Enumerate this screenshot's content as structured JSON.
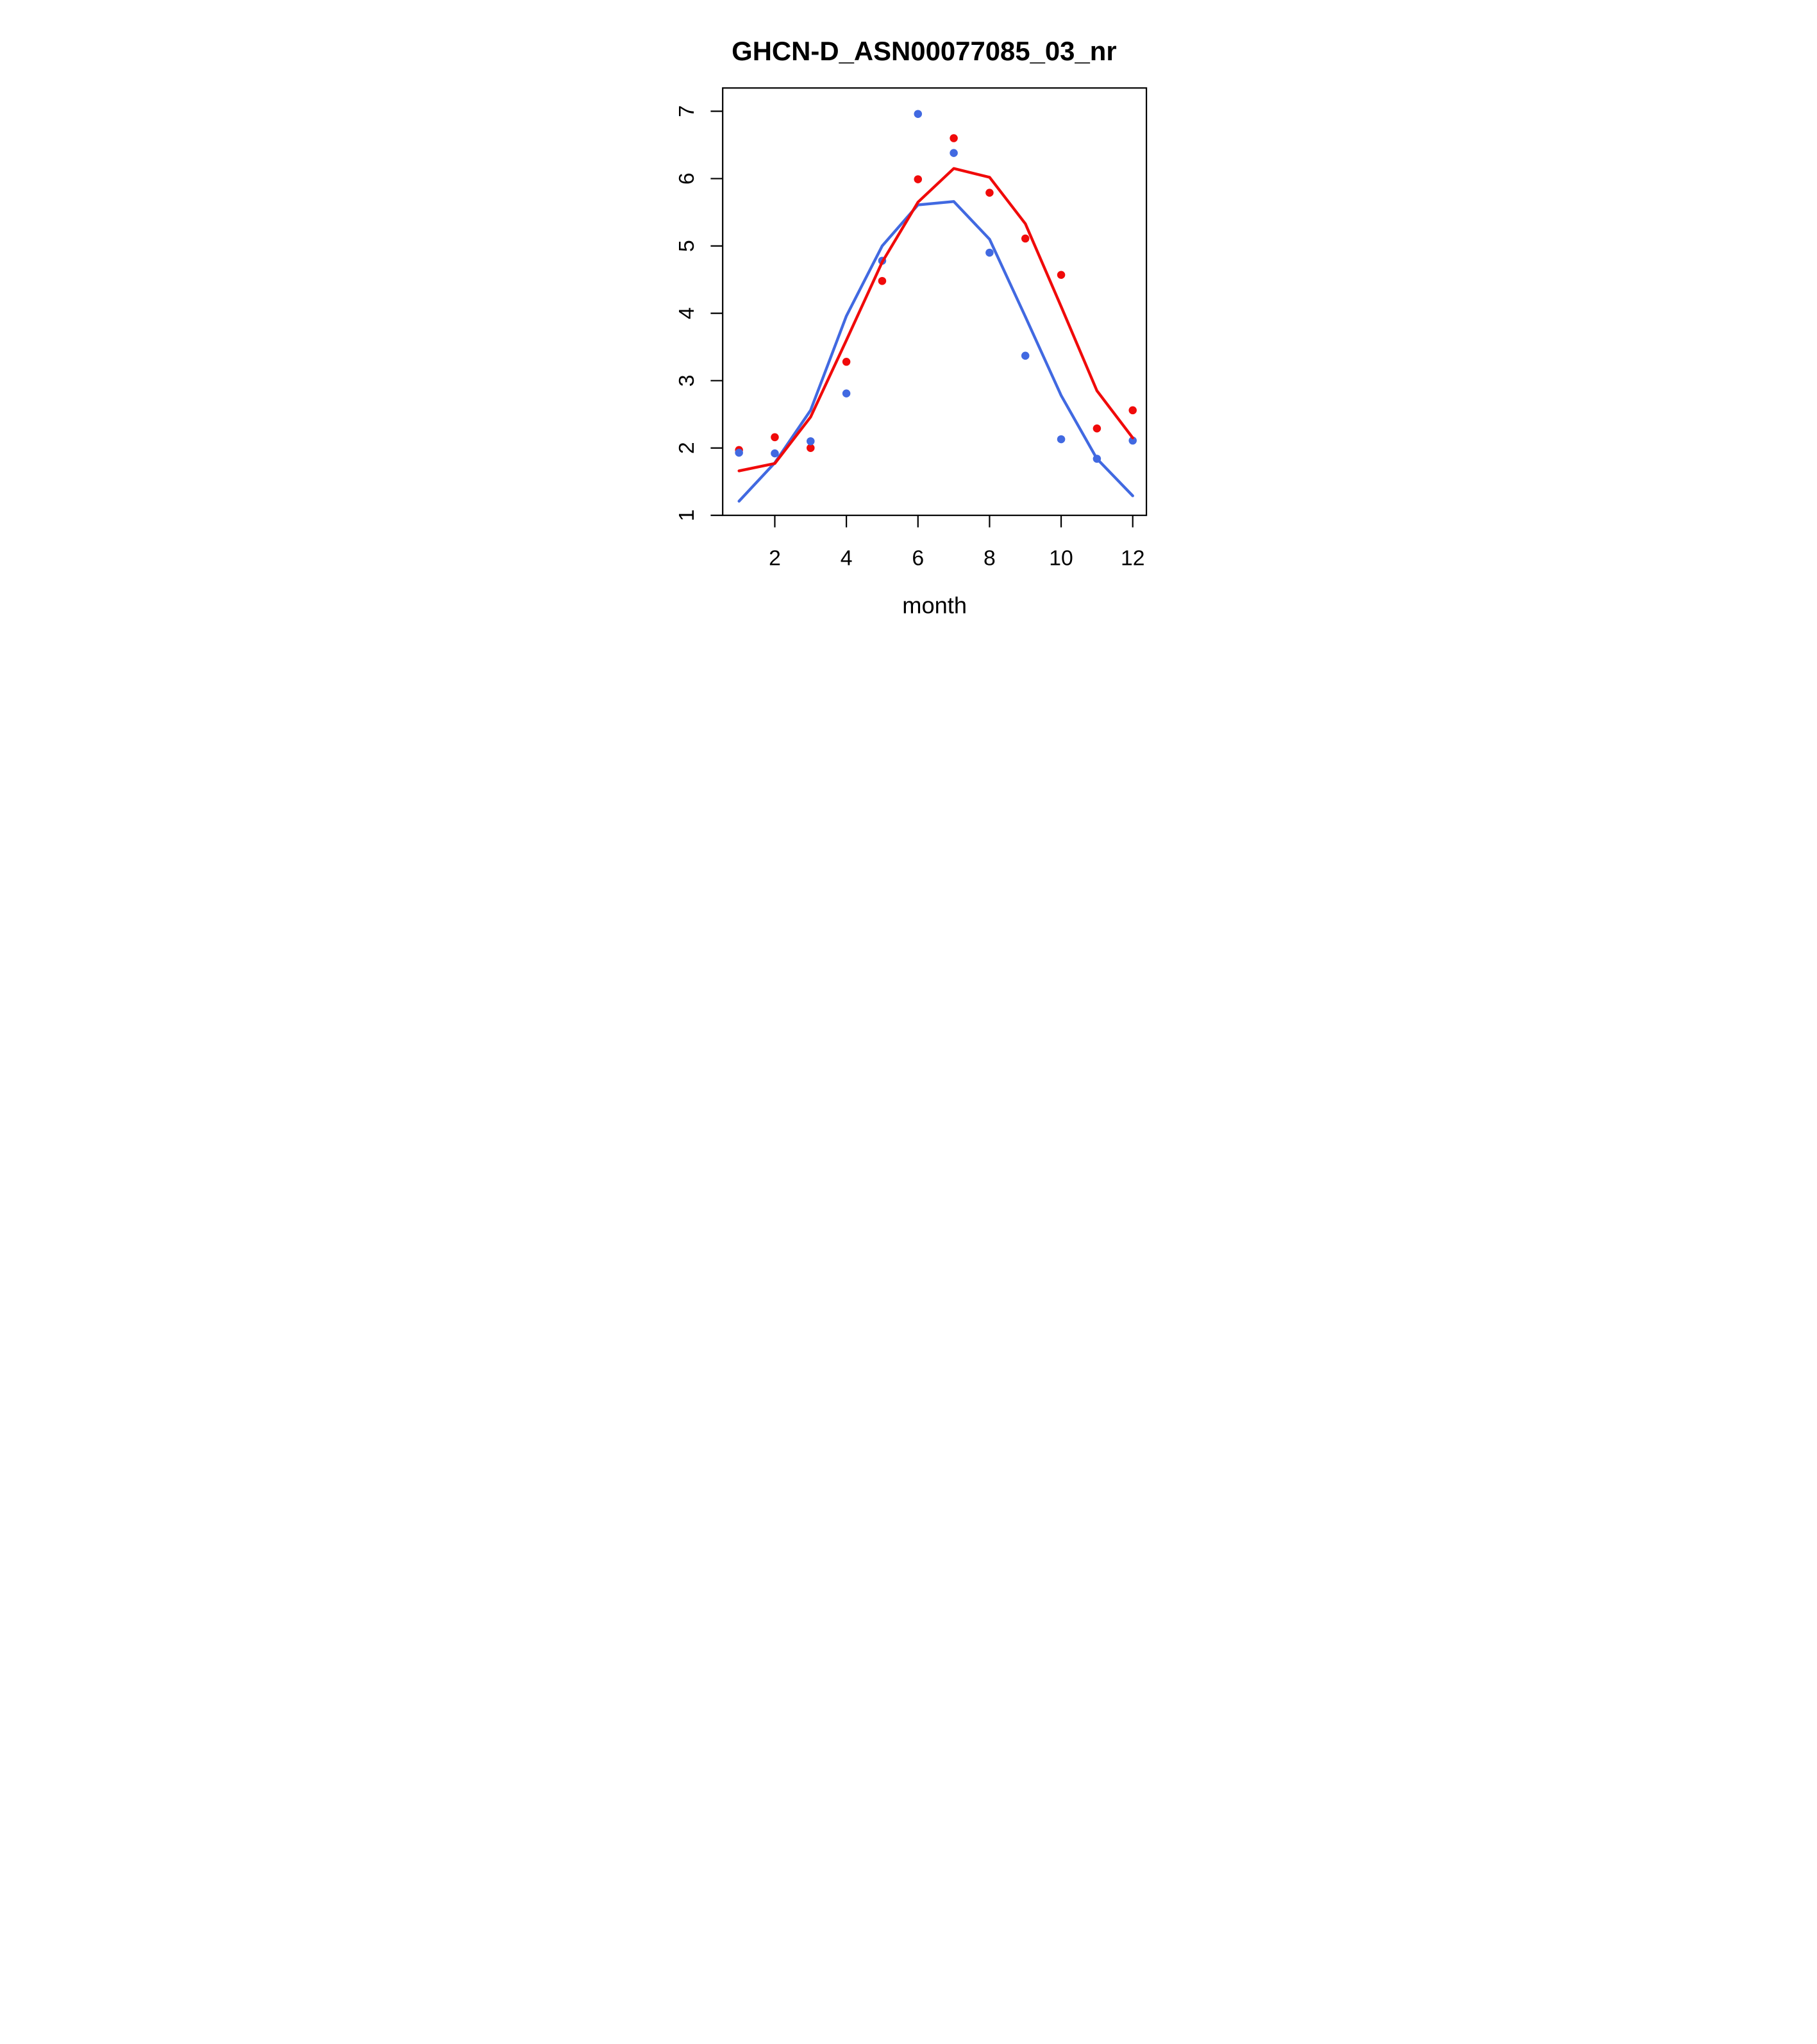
{
  "title": "GHCN-D_ASN00077085_03_nr",
  "chart_data": {
    "type": "scatter",
    "title": "GHCN-D_ASN00077085_03_nr",
    "xlabel": "month",
    "ylabel": "",
    "x": [
      1,
      2,
      3,
      4,
      5,
      6,
      7,
      8,
      9,
      10,
      11,
      12
    ],
    "xticks": [
      2,
      4,
      6,
      8,
      10,
      12
    ],
    "yticks": [
      1,
      2,
      3,
      4,
      5,
      6,
      7
    ],
    "xlim": [
      0.56,
      12.38
    ],
    "ylim": [
      1.0,
      7.35
    ],
    "grid": false,
    "legend_position": "none",
    "colors": {
      "red": "#F00A0A",
      "blue": "#4169E1",
      "axis": "#000000"
    },
    "series": [
      {
        "name": "red points",
        "kind": "points",
        "color": "#F00A0A",
        "y": [
          1.97,
          2.16,
          2.0,
          3.28,
          4.48,
          5.99,
          6.6,
          5.79,
          5.11,
          4.57,
          2.29,
          2.56
        ]
      },
      {
        "name": "blue points",
        "kind": "points",
        "color": "#4169E1",
        "y": [
          1.93,
          1.92,
          2.1,
          2.81,
          4.78,
          6.96,
          6.38,
          4.9,
          3.37,
          2.13,
          1.84,
          2.11
        ]
      },
      {
        "name": "blue fit line",
        "kind": "line",
        "color": "#4169E1",
        "y": [
          1.21,
          1.78,
          2.56,
          3.96,
          5.0,
          5.61,
          5.66,
          5.1,
          3.95,
          2.78,
          1.84,
          1.29
        ]
      },
      {
        "name": "red fit line",
        "kind": "line",
        "color": "#F00A0A",
        "y": [
          1.66,
          1.77,
          2.46,
          3.6,
          4.76,
          5.65,
          6.15,
          6.02,
          5.33,
          4.1,
          2.85,
          2.15
        ]
      }
    ]
  }
}
